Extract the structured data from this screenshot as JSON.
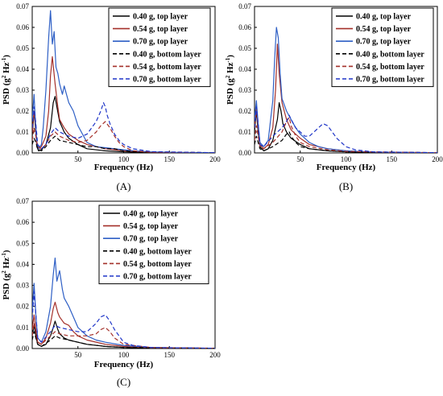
{
  "figure": {
    "panels": [
      {
        "id": "A",
        "label": "(A)",
        "xlabel": "Frequency (Hz)",
        "ylabel_main": "PSD (g",
        "ylabel_mid": " Hz",
        "ylabel_end": ")"
      },
      {
        "id": "B",
        "label": "(B)",
        "xlabel": "Frequency (Hz)",
        "ylabel_main": "PSD (g",
        "ylabel_mid": " Hz",
        "ylabel_end": ")"
      },
      {
        "id": "C",
        "label": "(C)",
        "xlabel": "Frequency (Hz)",
        "ylabel_main": "PSD (g",
        "ylabel_mid": " Hz",
        "ylabel_end": ")"
      }
    ],
    "ylabel_sup1": "2",
    "ylabel_sup2": "-1",
    "legend": [
      {
        "label": "0.40 g, top layer",
        "color": "#000000",
        "dash": "solid"
      },
      {
        "label": "0.54 g, top layer",
        "color": "#a4302a",
        "dash": "solid"
      },
      {
        "label": "0.70 g, top layer",
        "color": "#2e5fc5",
        "dash": "solid"
      },
      {
        "label": "0.40 g, bottom layer",
        "color": "#000000",
        "dash": "dashed"
      },
      {
        "label": "0.54 g, bottom layer",
        "color": "#a4302a",
        "dash": "dashed"
      },
      {
        "label": "0.70 g, bottom layer",
        "color": "#1f35c8",
        "dash": "dashed"
      }
    ]
  },
  "chart_data": [
    {
      "type": "line",
      "panel": "A",
      "xlabel": "Frequency (Hz)",
      "ylabel": "PSD (g² Hz⁻¹)",
      "xlim": [
        0,
        200
      ],
      "ylim": [
        0,
        0.07
      ],
      "xticks": [
        50,
        100,
        150,
        200
      ],
      "yticks": [
        0.0,
        0.01,
        0.02,
        0.03,
        0.04,
        0.05,
        0.06,
        0.07
      ],
      "legend_position": "top-right",
      "series": [
        {
          "name": "0.40 g, top layer",
          "x": [
            0,
            2,
            4,
            5,
            7,
            10,
            15,
            20,
            23,
            25,
            27,
            30,
            35,
            40,
            50,
            60,
            80,
            100,
            130,
            200
          ],
          "y": [
            0.008,
            0.02,
            0.01,
            0.003,
            0.001,
            0.0015,
            0.004,
            0.012,
            0.024,
            0.027,
            0.022,
            0.015,
            0.01,
            0.007,
            0.004,
            0.002,
            0.001,
            0.0005,
            0.0002,
            0.0001
          ]
        },
        {
          "name": "0.54 g, top layer",
          "x": [
            0,
            2,
            4,
            5,
            7,
            10,
            15,
            18,
            20,
            22,
            25,
            28,
            30,
            35,
            40,
            50,
            60,
            80,
            100,
            130,
            200
          ],
          "y": [
            0.01,
            0.02,
            0.012,
            0.004,
            0.002,
            0.003,
            0.008,
            0.02,
            0.037,
            0.046,
            0.033,
            0.022,
            0.016,
            0.012,
            0.009,
            0.006,
            0.004,
            0.002,
            0.001,
            0.0003,
            0.0001
          ]
        },
        {
          "name": "0.70 g, top layer",
          "x": [
            0,
            2,
            3,
            5,
            7,
            10,
            12,
            15,
            18,
            20,
            21,
            22,
            24,
            26,
            28,
            30,
            33,
            35,
            40,
            45,
            50,
            55,
            60,
            70,
            80,
            90,
            100,
            110,
            130,
            160,
            200
          ],
          "y": [
            0.016,
            0.028,
            0.019,
            0.005,
            0.002,
            0.004,
            0.012,
            0.03,
            0.055,
            0.068,
            0.06,
            0.052,
            0.058,
            0.041,
            0.038,
            0.033,
            0.028,
            0.032,
            0.024,
            0.02,
            0.013,
            0.009,
            0.005,
            0.003,
            0.0025,
            0.002,
            0.0015,
            0.001,
            0.0005,
            0.0002,
            0.0001
          ]
        },
        {
          "name": "0.40 g, bottom layer",
          "x": [
            0,
            2,
            4,
            6,
            10,
            15,
            20,
            25,
            30,
            40,
            50,
            60,
            70,
            80,
            90,
            100,
            120,
            200
          ],
          "y": [
            0.004,
            0.007,
            0.005,
            0.002,
            0.001,
            0.003,
            0.006,
            0.008,
            0.006,
            0.005,
            0.004,
            0.003,
            0.003,
            0.002,
            0.002,
            0.001,
            0.0005,
            0.0001
          ]
        },
        {
          "name": "0.54 g, bottom layer",
          "x": [
            0,
            2,
            4,
            6,
            10,
            15,
            20,
            25,
            30,
            40,
            50,
            60,
            65,
            70,
            75,
            80,
            85,
            90,
            95,
            100,
            110,
            130,
            200
          ],
          "y": [
            0.006,
            0.012,
            0.008,
            0.003,
            0.002,
            0.004,
            0.008,
            0.01,
            0.008,
            0.006,
            0.005,
            0.006,
            0.008,
            0.01,
            0.013,
            0.015,
            0.012,
            0.008,
            0.005,
            0.003,
            0.001,
            0.0004,
            0.0001
          ]
        },
        {
          "name": "0.70 g, bottom layer",
          "x": [
            0,
            2,
            4,
            6,
            10,
            15,
            20,
            25,
            30,
            40,
            50,
            60,
            65,
            70,
            75,
            78,
            80,
            82,
            85,
            90,
            95,
            100,
            110,
            130,
            200
          ],
          "y": [
            0.012,
            0.022,
            0.014,
            0.004,
            0.002,
            0.004,
            0.009,
            0.012,
            0.01,
            0.008,
            0.007,
            0.009,
            0.012,
            0.015,
            0.02,
            0.024,
            0.022,
            0.018,
            0.014,
            0.009,
            0.006,
            0.004,
            0.002,
            0.0006,
            0.0001
          ]
        }
      ]
    },
    {
      "type": "line",
      "panel": "B",
      "xlabel": "Frequency (Hz)",
      "ylabel": "PSD (g² Hz⁻¹)",
      "xlim": [
        0,
        200
      ],
      "ylim": [
        0,
        0.07
      ],
      "xticks": [
        50,
        100,
        150,
        200
      ],
      "yticks": [
        0.0,
        0.01,
        0.02,
        0.03,
        0.04,
        0.05,
        0.06,
        0.07
      ],
      "legend_position": "top-right",
      "series": [
        {
          "name": "0.40 g, top layer",
          "x": [
            0,
            2,
            4,
            6,
            10,
            15,
            20,
            25,
            27,
            29,
            31,
            35,
            40,
            50,
            60,
            80,
            100,
            130,
            200
          ],
          "y": [
            0.01,
            0.02,
            0.01,
            0.003,
            0.001,
            0.002,
            0.006,
            0.016,
            0.024,
            0.02,
            0.014,
            0.01,
            0.007,
            0.004,
            0.002,
            0.001,
            0.0005,
            0.0002,
            0.0001
          ]
        },
        {
          "name": "0.54 g, top layer",
          "x": [
            0,
            2,
            4,
            6,
            10,
            15,
            20,
            23,
            25,
            27,
            30,
            35,
            40,
            50,
            60,
            80,
            100,
            130,
            200
          ],
          "y": [
            0.012,
            0.021,
            0.012,
            0.004,
            0.002,
            0.004,
            0.012,
            0.03,
            0.052,
            0.038,
            0.024,
            0.016,
            0.011,
            0.007,
            0.004,
            0.002,
            0.001,
            0.0003,
            0.0001
          ]
        },
        {
          "name": "0.70 g, top layer",
          "x": [
            0,
            2,
            4,
            6,
            10,
            15,
            20,
            22,
            24,
            26,
            28,
            30,
            35,
            40,
            45,
            50,
            60,
            70,
            80,
            100,
            130,
            200
          ],
          "y": [
            0.016,
            0.025,
            0.014,
            0.005,
            0.003,
            0.006,
            0.025,
            0.045,
            0.06,
            0.055,
            0.038,
            0.026,
            0.02,
            0.016,
            0.012,
            0.009,
            0.005,
            0.003,
            0.002,
            0.001,
            0.0004,
            0.0001
          ]
        },
        {
          "name": "0.40 g, bottom layer",
          "x": [
            0,
            2,
            4,
            6,
            10,
            20,
            30,
            35,
            38,
            40,
            45,
            50,
            60,
            80,
            100,
            200
          ],
          "y": [
            0.004,
            0.008,
            0.005,
            0.002,
            0.001,
            0.003,
            0.006,
            0.009,
            0.01,
            0.008,
            0.005,
            0.003,
            0.002,
            0.001,
            0.0005,
            0.0001
          ]
        },
        {
          "name": "0.54 g, bottom layer",
          "x": [
            0,
            2,
            4,
            6,
            10,
            20,
            30,
            35,
            38,
            40,
            45,
            50,
            60,
            80,
            100,
            200
          ],
          "y": [
            0.006,
            0.013,
            0.008,
            0.003,
            0.002,
            0.005,
            0.01,
            0.015,
            0.017,
            0.013,
            0.008,
            0.005,
            0.003,
            0.0015,
            0.0007,
            0.0001
          ]
        },
        {
          "name": "0.70 g, bottom layer",
          "x": [
            0,
            2,
            4,
            6,
            10,
            20,
            30,
            35,
            38,
            40,
            45,
            50,
            55,
            60,
            65,
            70,
            75,
            80,
            85,
            90,
            95,
            100,
            110,
            130,
            200
          ],
          "y": [
            0.012,
            0.022,
            0.014,
            0.004,
            0.003,
            0.008,
            0.012,
            0.015,
            0.018,
            0.016,
            0.012,
            0.01,
            0.008,
            0.008,
            0.01,
            0.012,
            0.014,
            0.013,
            0.01,
            0.007,
            0.005,
            0.003,
            0.0015,
            0.0005,
            0.0001
          ]
        }
      ]
    },
    {
      "type": "line",
      "panel": "C",
      "xlabel": "Frequency (Hz)",
      "ylabel": "PSD (g² Hz⁻¹)",
      "xlim": [
        0,
        200
      ],
      "ylim": [
        0,
        0.07
      ],
      "xticks": [
        50,
        100,
        150,
        200
      ],
      "yticks": [
        0.0,
        0.01,
        0.02,
        0.03,
        0.04,
        0.05,
        0.06,
        0.07
      ],
      "legend_position": "top-right",
      "series": [
        {
          "name": "0.40 g, top layer",
          "x": [
            0,
            2,
            4,
            6,
            10,
            15,
            20,
            23,
            25,
            28,
            30,
            35,
            40,
            50,
            60,
            80,
            100,
            130,
            200
          ],
          "y": [
            0.006,
            0.011,
            0.006,
            0.002,
            0.001,
            0.002,
            0.006,
            0.01,
            0.013,
            0.009,
            0.007,
            0.005,
            0.004,
            0.003,
            0.002,
            0.001,
            0.0005,
            0.0002,
            0.0001
          ]
        },
        {
          "name": "0.54 g, top layer",
          "x": [
            0,
            2,
            4,
            6,
            10,
            15,
            20,
            23,
            25,
            28,
            30,
            35,
            40,
            45,
            50,
            60,
            80,
            100,
            130,
            200
          ],
          "y": [
            0.009,
            0.016,
            0.009,
            0.003,
            0.002,
            0.005,
            0.012,
            0.019,
            0.022,
            0.017,
            0.015,
            0.012,
            0.011,
            0.008,
            0.006,
            0.004,
            0.002,
            0.001,
            0.0003,
            0.0001
          ]
        },
        {
          "name": "0.70 g, top layer",
          "x": [
            0,
            2,
            4,
            6,
            10,
            15,
            20,
            23,
            25,
            27,
            30,
            33,
            35,
            40,
            45,
            50,
            60,
            70,
            80,
            100,
            130,
            200
          ],
          "y": [
            0.018,
            0.031,
            0.016,
            0.005,
            0.003,
            0.008,
            0.02,
            0.035,
            0.043,
            0.032,
            0.037,
            0.028,
            0.024,
            0.02,
            0.015,
            0.01,
            0.006,
            0.004,
            0.003,
            0.0015,
            0.0005,
            0.0001
          ]
        },
        {
          "name": "0.40 g, bottom layer",
          "x": [
            0,
            2,
            4,
            6,
            10,
            20,
            25,
            30,
            40,
            50,
            60,
            80,
            100,
            200
          ],
          "y": [
            0.004,
            0.008,
            0.005,
            0.002,
            0.001,
            0.004,
            0.006,
            0.005,
            0.004,
            0.003,
            0.002,
            0.001,
            0.0005,
            0.0001
          ]
        },
        {
          "name": "0.54 g, bottom layer",
          "x": [
            0,
            2,
            4,
            6,
            10,
            20,
            25,
            30,
            40,
            50,
            60,
            70,
            75,
            80,
            85,
            90,
            100,
            130,
            200
          ],
          "y": [
            0.006,
            0.012,
            0.008,
            0.003,
            0.002,
            0.006,
            0.008,
            0.007,
            0.006,
            0.006,
            0.006,
            0.007,
            0.009,
            0.01,
            0.008,
            0.005,
            0.002,
            0.0005,
            0.0001
          ]
        },
        {
          "name": "0.70 g, bottom layer",
          "x": [
            0,
            2,
            4,
            6,
            10,
            20,
            25,
            30,
            40,
            50,
            60,
            65,
            70,
            75,
            80,
            85,
            90,
            95,
            100,
            110,
            130,
            200
          ],
          "y": [
            0.014,
            0.027,
            0.016,
            0.005,
            0.003,
            0.008,
            0.011,
            0.01,
            0.009,
            0.008,
            0.008,
            0.01,
            0.012,
            0.015,
            0.016,
            0.013,
            0.009,
            0.006,
            0.003,
            0.0015,
            0.0005,
            0.0001
          ]
        }
      ]
    }
  ]
}
